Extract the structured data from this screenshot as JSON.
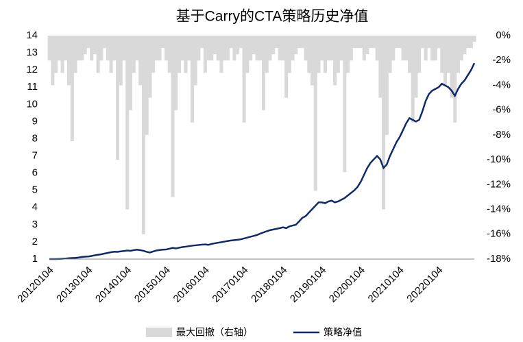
{
  "chart_data": {
    "type": "line-area-combo",
    "title": "基于Carry的CTA策略历史净值",
    "categories": [
      "20120104",
      null,
      null,
      null,
      null,
      null,
      null,
      null,
      null,
      null,
      null,
      null,
      "20130104",
      null,
      null,
      null,
      null,
      null,
      null,
      null,
      null,
      null,
      null,
      null,
      "20140104",
      null,
      null,
      null,
      null,
      null,
      null,
      null,
      null,
      null,
      null,
      null,
      "20150104",
      null,
      null,
      null,
      null,
      null,
      null,
      null,
      null,
      null,
      null,
      null,
      "20160104",
      null,
      null,
      null,
      null,
      null,
      null,
      null,
      null,
      null,
      null,
      null,
      "20170104",
      null,
      null,
      null,
      null,
      null,
      null,
      null,
      null,
      null,
      null,
      null,
      "20180104",
      null,
      null,
      null,
      null,
      null,
      null,
      null,
      null,
      null,
      null,
      null,
      "20190104",
      null,
      null,
      null,
      null,
      null,
      null,
      null,
      null,
      null,
      null,
      null,
      "20200104",
      null,
      null,
      null,
      null,
      null,
      null,
      null,
      null,
      null,
      null,
      null,
      "20210104",
      null,
      null,
      null,
      null,
      null,
      null,
      null,
      null,
      null,
      null,
      null,
      "20220104",
      null,
      null,
      null,
      null,
      null,
      null,
      null,
      null,
      null,
      null,
      null
    ],
    "series": [
      {
        "name": "最大回撤（右轴）",
        "color": "#d9d9d9",
        "axis": "y2",
        "kind": "area",
        "values": [
          -2,
          -4,
          -3,
          -2,
          -3,
          -2,
          -4,
          -8.5,
          -3,
          -2,
          -2,
          -1.5,
          -1,
          -2,
          -1.5,
          -3,
          -2,
          -1,
          -2,
          -3,
          -2,
          -10,
          -4,
          -2,
          -14,
          -6,
          -3,
          -2,
          -4,
          -16,
          -8,
          -5,
          -3,
          -2,
          -2,
          -1,
          -2,
          -3,
          -13,
          -6,
          -3,
          -2,
          -3,
          -2,
          -7,
          -4,
          -2,
          -1,
          -3,
          -2,
          -2,
          -1.5,
          -2,
          -3,
          -2,
          -2,
          -1,
          -2,
          -1.5,
          -1,
          -7,
          -3,
          -2,
          -1.5,
          -2,
          -2,
          -6,
          -3,
          -2,
          -1.5,
          -1,
          -2,
          -2,
          -5,
          -3,
          -2,
          -1.5,
          -1,
          -1,
          -2,
          -3,
          -4,
          -12.5,
          -3,
          -2,
          -3,
          -2,
          -2,
          -4,
          -3,
          -2,
          -11,
          -3,
          -2,
          -1,
          -1,
          -1,
          -2,
          -1.5,
          -1,
          -1,
          -2,
          -5,
          -14,
          -8,
          -3,
          -2,
          -1,
          -1,
          -2,
          -2,
          -3,
          -7,
          -5,
          -3,
          -1,
          -2,
          -1,
          -2,
          -2,
          -1,
          -3,
          -4,
          -3,
          -5,
          -7,
          -3,
          -2,
          -1.5,
          -1,
          -1,
          -0.5
        ]
      },
      {
        "name": "策略净值",
        "color": "#0d2a6b",
        "kind": "line",
        "values": [
          1.0,
          1.0,
          1.0,
          1.01,
          1.02,
          1.03,
          1.05,
          1.06,
          1.07,
          1.09,
          1.12,
          1.14,
          1.15,
          1.18,
          1.22,
          1.25,
          1.28,
          1.32,
          1.36,
          1.4,
          1.43,
          1.42,
          1.45,
          1.47,
          1.5,
          1.48,
          1.52,
          1.55,
          1.52,
          1.48,
          1.42,
          1.38,
          1.44,
          1.5,
          1.53,
          1.55,
          1.56,
          1.6,
          1.65,
          1.62,
          1.66,
          1.7,
          1.72,
          1.75,
          1.78,
          1.8,
          1.82,
          1.84,
          1.85,
          1.83,
          1.88,
          1.92,
          1.95,
          1.98,
          2.02,
          2.05,
          2.08,
          2.1,
          2.12,
          2.15,
          2.2,
          2.25,
          2.3,
          2.35,
          2.4,
          2.48,
          2.55,
          2.62,
          2.68,
          2.72,
          2.76,
          2.8,
          2.85,
          2.8,
          2.9,
          2.95,
          3.0,
          3.2,
          3.4,
          3.5,
          3.7,
          3.9,
          4.1,
          4.3,
          4.3,
          4.25,
          4.35,
          4.4,
          4.3,
          4.35,
          4.45,
          4.55,
          4.7,
          4.85,
          5.0,
          5.2,
          5.5,
          5.9,
          6.3,
          6.6,
          6.8,
          7.0,
          6.8,
          6.3,
          6.5,
          7.0,
          7.4,
          7.8,
          8.1,
          8.5,
          8.9,
          9.2,
          9.1,
          9.0,
          9.1,
          9.6,
          10.2,
          10.6,
          10.8,
          10.9,
          11.0,
          11.2,
          11.1,
          11.0,
          10.8,
          10.5,
          10.9,
          11.2,
          11.4,
          11.7,
          12.0,
          12.4
        ]
      }
    ],
    "ylim": [
      1,
      14
    ],
    "yticks": [
      1,
      2,
      3,
      4,
      5,
      6,
      7,
      8,
      9,
      10,
      11,
      12,
      13,
      14
    ],
    "y2lim": [
      -18,
      0
    ],
    "y2ticks": [
      {
        "value": 0,
        "label": "0%"
      },
      {
        "value": -2,
        "label": "-2%"
      },
      {
        "value": -4,
        "label": "-4%"
      },
      {
        "value": -6,
        "label": "-6%"
      },
      {
        "value": -8,
        "label": "-8%"
      },
      {
        "value": -10,
        "label": "-10%"
      },
      {
        "value": -12,
        "label": "-12%"
      },
      {
        "value": -14,
        "label": "-14%"
      },
      {
        "value": -16,
        "label": "-16%"
      },
      {
        "value": -18,
        "label": "-18%"
      }
    ],
    "legend": "bottom",
    "grid": false
  }
}
